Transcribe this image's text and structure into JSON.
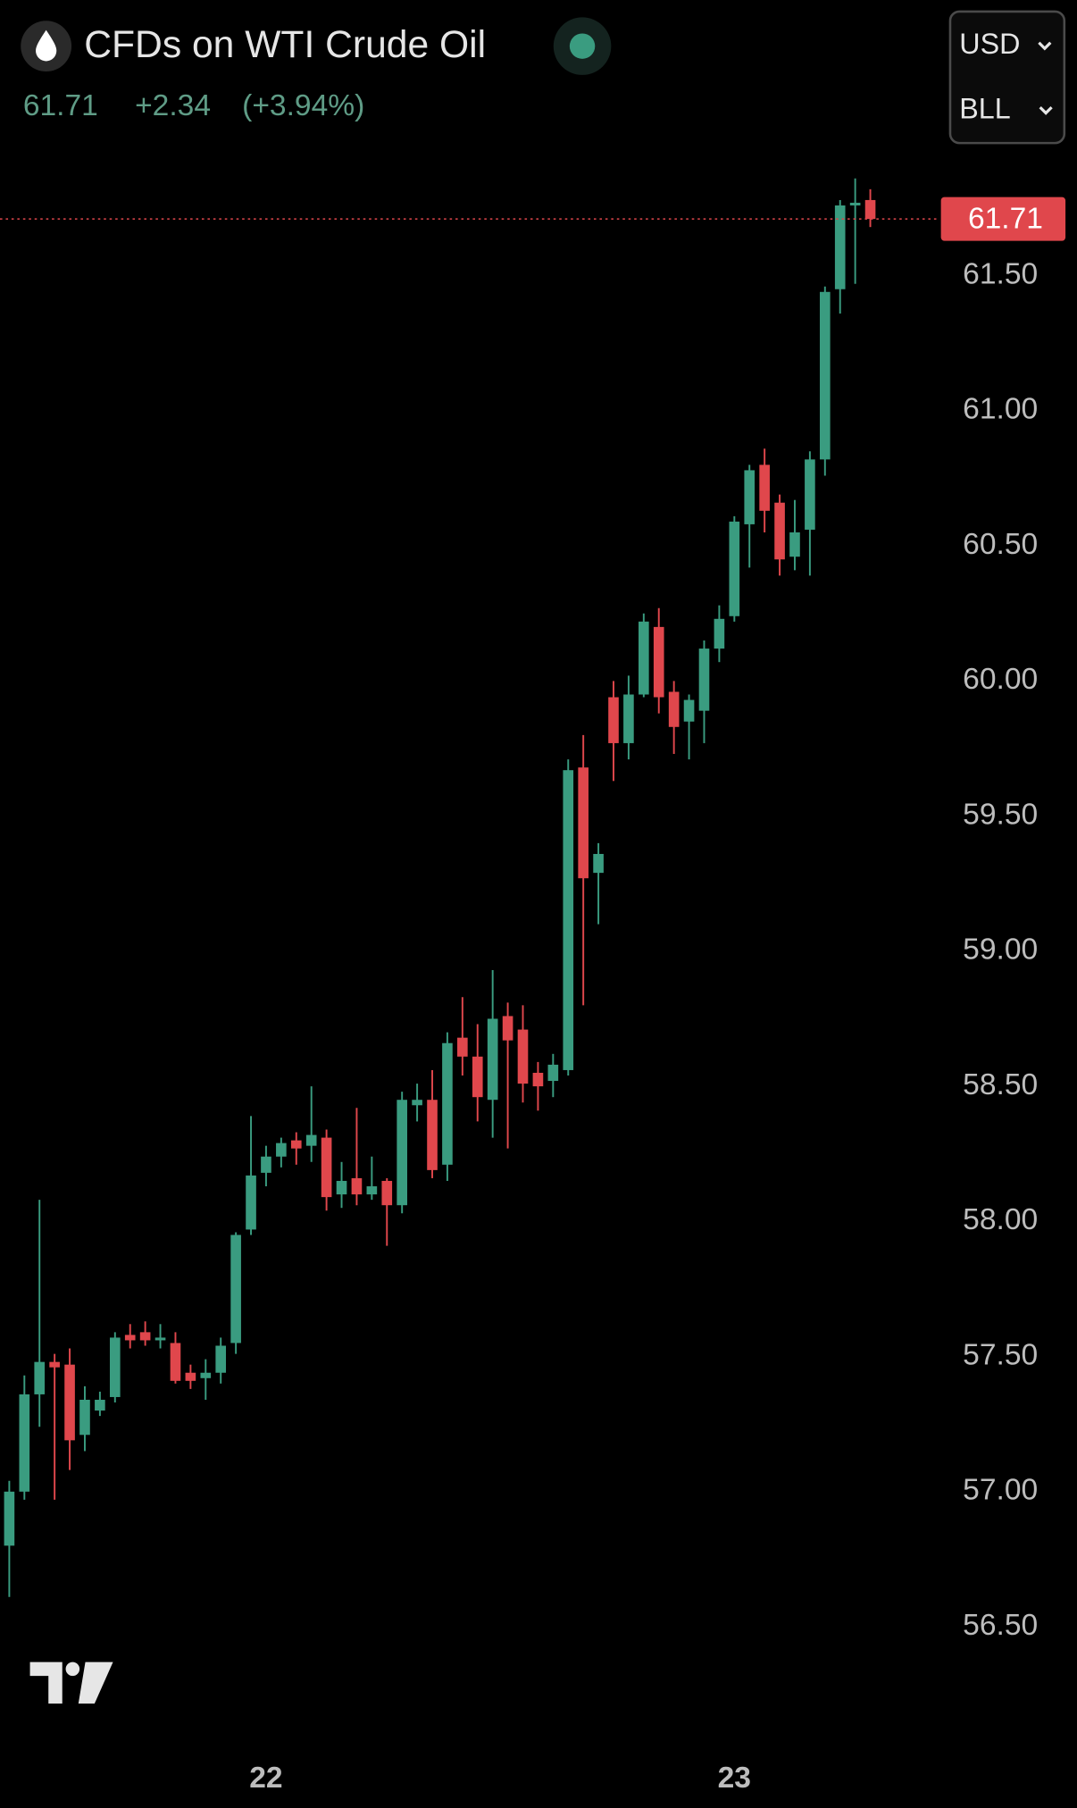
{
  "header": {
    "change": "+2.34",
    "change_percent": "(+3.94%)",
    "currency": "USD",
    "unit": "BLL"
  },
  "chart_data": {
    "type": "candlestick",
    "title": "CFDs on WTI Crude Oil",
    "last_price": 61.71,
    "up_color": "#3a9c80",
    "down_color": "#e0474c",
    "categories": [
      null,
      null,
      null,
      null,
      null,
      null,
      null,
      null,
      null,
      null,
      null,
      null,
      null,
      null,
      null,
      null,
      null,
      "22",
      null,
      null,
      null,
      null,
      null,
      null,
      null,
      null,
      null,
      null,
      null,
      null,
      null,
      null,
      null,
      null,
      null,
      null,
      null,
      null,
      null,
      null,
      null,
      null,
      null,
      null,
      null,
      null,
      null,
      null,
      "23",
      null,
      null,
      null,
      null,
      null,
      null,
      null,
      null,
      null
    ],
    "open": [
      56.8,
      57.0,
      57.36,
      57.48,
      57.47,
      57.21,
      57.3,
      57.35,
      57.58,
      57.59,
      57.56,
      57.55,
      57.44,
      57.42,
      57.44,
      57.55,
      57.97,
      58.18,
      58.24,
      58.3,
      58.28,
      58.31,
      58.1,
      58.16,
      58.1,
      58.15,
      58.06,
      58.43,
      58.45,
      58.21,
      58.68,
      58.61,
      58.45,
      58.76,
      58.71,
      58.55,
      58.52,
      58.56,
      59.68,
      59.29,
      59.94,
      59.77,
      59.95,
      60.2,
      59.96,
      59.85,
      59.89,
      60.12,
      60.24,
      60.58,
      60.8,
      60.66,
      60.46,
      60.56,
      60.82,
      61.45,
      61.76,
      61.78
    ],
    "high": [
      57.04,
      57.43,
      58.08,
      57.51,
      57.53,
      57.39,
      57.37,
      57.59,
      57.62,
      57.63,
      57.62,
      57.59,
      57.47,
      57.49,
      57.57,
      57.96,
      58.39,
      58.28,
      58.31,
      58.33,
      58.5,
      58.34,
      58.22,
      58.42,
      58.24,
      58.16,
      58.48,
      58.51,
      58.56,
      58.7,
      58.83,
      58.73,
      58.93,
      58.81,
      58.8,
      58.59,
      58.62,
      59.71,
      59.8,
      59.4,
      60.0,
      60.02,
      60.25,
      60.27,
      60.0,
      59.95,
      60.15,
      60.28,
      60.61,
      60.8,
      60.86,
      60.69,
      60.67,
      60.85,
      61.46,
      61.78,
      61.86,
      61.82
    ],
    "low": [
      56.61,
      56.97,
      57.24,
      56.97,
      57.08,
      57.15,
      57.28,
      57.33,
      57.53,
      57.54,
      57.53,
      57.4,
      57.38,
      57.34,
      57.4,
      57.51,
      57.95,
      58.13,
      58.2,
      58.21,
      58.22,
      58.04,
      58.05,
      58.06,
      58.08,
      57.91,
      58.03,
      58.37,
      58.16,
      58.15,
      58.54,
      58.37,
      58.31,
      58.27,
      58.44,
      58.41,
      58.46,
      58.54,
      58.8,
      59.1,
      59.63,
      59.71,
      59.94,
      59.88,
      59.73,
      59.71,
      59.77,
      60.07,
      60.22,
      60.42,
      60.55,
      60.39,
      60.41,
      60.39,
      60.76,
      61.36,
      61.47,
      61.68
    ],
    "close": [
      57.0,
      57.36,
      57.48,
      57.46,
      57.19,
      57.34,
      57.34,
      57.57,
      57.56,
      57.56,
      57.57,
      57.41,
      57.41,
      57.44,
      57.54,
      57.95,
      58.17,
      58.24,
      58.29,
      58.27,
      58.32,
      58.09,
      58.15,
      58.1,
      58.13,
      58.06,
      58.45,
      58.45,
      58.19,
      58.66,
      58.61,
      58.46,
      58.75,
      58.67,
      58.51,
      58.5,
      58.58,
      59.67,
      59.27,
      59.36,
      59.77,
      59.95,
      60.22,
      59.94,
      59.83,
      59.93,
      60.12,
      60.23,
      60.59,
      60.78,
      60.63,
      60.45,
      60.55,
      60.82,
      61.44,
      61.76,
      61.77,
      61.71
    ],
    "ylim": [
      56.16,
      61.88
    ],
    "yticks": [
      {
        "value": 56.5,
        "label": "56.50"
      },
      {
        "value": 57,
        "label": "57.00"
      },
      {
        "value": 57.5,
        "label": "57.50"
      },
      {
        "value": 58,
        "label": "58.00"
      },
      {
        "value": 58.5,
        "label": "58.50"
      },
      {
        "value": 59,
        "label": "59.00"
      },
      {
        "value": 59.5,
        "label": "59.50"
      },
      {
        "value": 60,
        "label": "60.00"
      },
      {
        "value": 60.5,
        "label": "60.50"
      },
      {
        "value": 61,
        "label": "61.00"
      },
      {
        "value": 61.5,
        "label": "61.50"
      }
    ],
    "grid": false
  }
}
